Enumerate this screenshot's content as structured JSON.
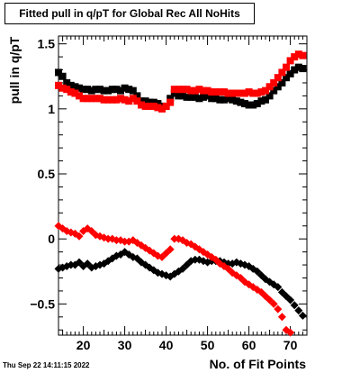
{
  "title": "Fitted pull in q/pT for Global Rec All NoHits",
  "timestamp": "Thu Sep 22 14:11:15 2022",
  "chart_data": {
    "type": "scatter",
    "title": "Fitted pull in q/pT for Global Rec All NoHits",
    "xlabel": "No. of Fit Points",
    "ylabel": "pull in q/pT",
    "xlim": [
      14,
      74
    ],
    "ylim": [
      -0.74,
      1.56
    ],
    "xticks": [
      20,
      30,
      40,
      50,
      60,
      70
    ],
    "yticks": [
      -0.5,
      0,
      0.5,
      1,
      1.5
    ],
    "ytick_labels": [
      "−0.5",
      "0",
      "0.5",
      "1",
      "1.5"
    ],
    "series": [
      {
        "marker": "square",
        "color": "#000000",
        "x": [
          14,
          15,
          16,
          17,
          18,
          19,
          20,
          21,
          22,
          23,
          24,
          25,
          26,
          27,
          28,
          29,
          30,
          31,
          32,
          33,
          34,
          35,
          36,
          37,
          38,
          39,
          40,
          41,
          42,
          43,
          44,
          45,
          46,
          47,
          48,
          49,
          50,
          51,
          52,
          53,
          54,
          55,
          56,
          57,
          58,
          59,
          60,
          61,
          62,
          63,
          64,
          65,
          66,
          67,
          68,
          69,
          70,
          71,
          72,
          73
        ],
        "y": [
          1.28,
          1.25,
          1.2,
          1.18,
          1.17,
          1.16,
          1.15,
          1.15,
          1.14,
          1.15,
          1.15,
          1.14,
          1.14,
          1.15,
          1.15,
          1.14,
          1.16,
          1.15,
          1.14,
          1.1,
          1.06,
          1.06,
          1.05,
          1.05,
          1.04,
          1.02,
          1.02,
          1.08,
          1.12,
          1.1,
          1.1,
          1.09,
          1.09,
          1.09,
          1.08,
          1.09,
          1.1,
          1.08,
          1.08,
          1.07,
          1.07,
          1.08,
          1.07,
          1.06,
          1.05,
          1.04,
          1.03,
          1.03,
          1.04,
          1.06,
          1.07,
          1.1,
          1.14,
          1.17,
          1.2,
          1.24,
          1.27,
          1.3,
          1.32,
          1.31
        ]
      },
      {
        "marker": "square",
        "color": "#ff0000",
        "x": [
          14,
          15,
          16,
          17,
          18,
          19,
          20,
          21,
          22,
          23,
          24,
          25,
          26,
          27,
          28,
          29,
          30,
          31,
          32,
          33,
          34,
          35,
          36,
          37,
          38,
          39,
          40,
          41,
          42,
          43,
          44,
          45,
          46,
          47,
          48,
          49,
          50,
          51,
          52,
          53,
          54,
          55,
          56,
          57,
          58,
          59,
          60,
          61,
          62,
          63,
          64,
          65,
          66,
          67,
          68,
          69,
          70,
          71,
          72,
          73
        ],
        "y": [
          1.18,
          1.16,
          1.15,
          1.13,
          1.12,
          1.1,
          1.08,
          1.08,
          1.08,
          1.08,
          1.08,
          1.07,
          1.07,
          1.07,
          1.07,
          1.08,
          1.07,
          1.06,
          1.08,
          1.06,
          1.03,
          1.02,
          1.02,
          1.02,
          1.01,
          1.0,
          1.02,
          1.05,
          1.15,
          1.15,
          1.15,
          1.15,
          1.14,
          1.14,
          1.15,
          1.14,
          1.14,
          1.13,
          1.13,
          1.13,
          1.13,
          1.12,
          1.12,
          1.12,
          1.12,
          1.12,
          1.13,
          1.12,
          1.12,
          1.13,
          1.14,
          1.17,
          1.2,
          1.24,
          1.28,
          1.32,
          1.37,
          1.4,
          1.42,
          1.41
        ]
      },
      {
        "marker": "diamond",
        "color": "#000000",
        "x": [
          14,
          15,
          16,
          17,
          18,
          19,
          20,
          21,
          22,
          23,
          24,
          25,
          26,
          27,
          28,
          29,
          30,
          31,
          32,
          33,
          34,
          35,
          36,
          37,
          38,
          39,
          40,
          41,
          42,
          43,
          44,
          45,
          46,
          47,
          48,
          49,
          50,
          51,
          52,
          53,
          54,
          55,
          56,
          57,
          58,
          59,
          60,
          61,
          62,
          63,
          64,
          65,
          66,
          67,
          68,
          69,
          70,
          71,
          72,
          73
        ],
        "y": [
          -0.23,
          -0.22,
          -0.21,
          -0.2,
          -0.2,
          -0.18,
          -0.21,
          -0.19,
          -0.22,
          -0.21,
          -0.2,
          -0.19,
          -0.17,
          -0.15,
          -0.13,
          -0.12,
          -0.1,
          -0.12,
          -0.14,
          -0.15,
          -0.18,
          -0.2,
          -0.22,
          -0.24,
          -0.26,
          -0.27,
          -0.28,
          -0.29,
          -0.27,
          -0.25,
          -0.23,
          -0.2,
          -0.17,
          -0.16,
          -0.16,
          -0.17,
          -0.18,
          -0.17,
          -0.17,
          -0.17,
          -0.18,
          -0.19,
          -0.19,
          -0.18,
          -0.19,
          -0.2,
          -0.21,
          -0.23,
          -0.25,
          -0.28,
          -0.31,
          -0.33,
          -0.35,
          -0.37,
          -0.41,
          -0.44,
          -0.47,
          -0.51,
          -0.55,
          -0.59
        ]
      },
      {
        "marker": "diamond",
        "color": "#ff0000",
        "x": [
          14,
          15,
          16,
          17,
          18,
          19,
          20,
          21,
          22,
          23,
          24,
          25,
          26,
          27,
          28,
          29,
          30,
          31,
          32,
          33,
          34,
          35,
          36,
          37,
          38,
          39,
          40,
          41,
          42,
          43,
          44,
          45,
          46,
          47,
          48,
          49,
          50,
          51,
          52,
          53,
          54,
          55,
          56,
          57,
          58,
          59,
          60,
          61,
          62,
          63,
          64,
          65,
          66,
          67,
          68,
          69,
          70,
          71,
          72,
          73
        ],
        "y": [
          0.1,
          0.08,
          0.06,
          0.05,
          0.04,
          0.02,
          0.06,
          0.08,
          0.06,
          0.03,
          0.02,
          0.01,
          0.0,
          0.0,
          -0.01,
          -0.01,
          -0.02,
          -0.02,
          -0.01,
          -0.03,
          -0.05,
          -0.07,
          -0.09,
          -0.11,
          -0.13,
          -0.14,
          -0.11,
          -0.08,
          0.0,
          0.0,
          -0.01,
          -0.03,
          -0.04,
          -0.06,
          -0.08,
          -0.1,
          -0.12,
          -0.14,
          -0.16,
          -0.19,
          -0.21,
          -0.23,
          -0.26,
          -0.28,
          -0.3,
          -0.33,
          -0.35,
          -0.37,
          -0.39,
          -0.41,
          -0.44,
          -0.47,
          -0.5,
          -0.54,
          -0.6,
          -0.7,
          -0.72,
          null,
          null,
          null
        ]
      }
    ]
  }
}
